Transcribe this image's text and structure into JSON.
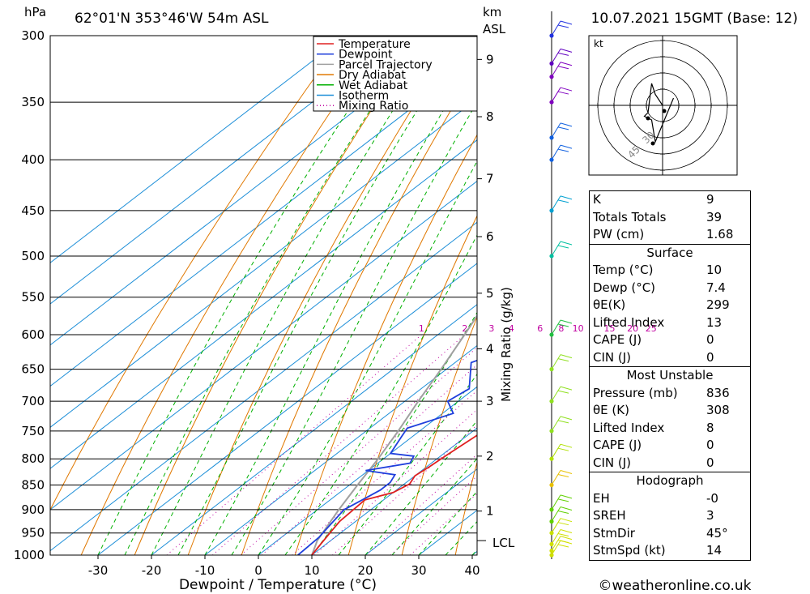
{
  "header": {
    "location": "62°01'N 353°46'W 54m ASL",
    "datetime": "10.07.2021 15GMT (Base: 12)",
    "pressure_unit": "hPa",
    "height_unit_top": "km",
    "height_unit_bottom": "ASL",
    "x_axis_label": "Dewpoint / Temperature (°C)",
    "mixing_axis_label": "Mixing Ratio (g/kg)",
    "credit": "©weatheronline.co.uk",
    "hodo_unit": "kt",
    "lcl_label": "LCL"
  },
  "legend": [
    {
      "label": "Temperature",
      "color": "#e02020",
      "style": "solid"
    },
    {
      "label": "Dewpoint",
      "color": "#1f3fdc",
      "style": "solid"
    },
    {
      "label": "Parcel Trajectory",
      "color": "#a0a0a0",
      "style": "solid"
    },
    {
      "label": "Dry Adiabat",
      "color": "#e07800",
      "style": "solid"
    },
    {
      "label": "Wet Adiabat",
      "color": "#00b000",
      "style": "solid"
    },
    {
      "label": "Isotherm",
      "color": "#1e8fd8",
      "style": "solid"
    },
    {
      "label": "Mixing Ratio",
      "color": "#c000a0",
      "style": "dotted"
    }
  ],
  "chart_data": {
    "type": "skew-t",
    "y_axis": {
      "name": "pressure",
      "unit": "hPa",
      "scale": "log",
      "range": [
        1000,
        300
      ],
      "ticks": [
        300,
        350,
        400,
        450,
        500,
        550,
        600,
        650,
        700,
        750,
        800,
        850,
        900,
        950,
        1000
      ]
    },
    "x_axis": {
      "name": "temperature",
      "unit": "°C",
      "range": [
        -40,
        40
      ],
      "ticks": [
        -30,
        -20,
        -10,
        0,
        10,
        20,
        30,
        40
      ]
    },
    "height_ticks_km": [
      {
        "km": "1",
        "p": 903
      },
      {
        "km": "2",
        "p": 795
      },
      {
        "km": "3",
        "p": 700
      },
      {
        "km": "4",
        "p": 620
      },
      {
        "km": "5",
        "p": 545
      },
      {
        "km": "6",
        "p": 478
      },
      {
        "km": "7",
        "p": 418
      },
      {
        "km": "8",
        "p": 362
      },
      {
        "km": "9",
        "p": 317
      }
    ],
    "lcl_pressure": 967,
    "mixing_ratio_labels": [
      "1",
      "2",
      "3",
      "4",
      "6",
      "8",
      "10",
      "15",
      "20",
      "25"
    ],
    "series": [
      {
        "name": "Temperature",
        "color": "#e02020",
        "points": [
          [
            1000,
            10
          ],
          [
            975,
            9
          ],
          [
            950,
            8
          ],
          [
            925,
            7
          ],
          [
            880,
            6.5
          ],
          [
            865,
            10
          ],
          [
            848,
            11
          ],
          [
            832,
            10
          ],
          [
            815,
            10.5
          ],
          [
            790,
            11
          ],
          [
            750,
            12
          ],
          [
            700,
            12
          ],
          [
            650,
            8.5
          ],
          [
            600,
            4.5
          ],
          [
            560,
            0
          ],
          [
            540,
            -1
          ],
          [
            520,
            -3
          ],
          [
            500,
            -5.5
          ],
          [
            470,
            -9
          ],
          [
            450,
            -12
          ],
          [
            420,
            -15
          ],
          [
            400,
            -18.5
          ],
          [
            380,
            -22
          ],
          [
            350,
            -26
          ],
          [
            330,
            -29
          ],
          [
            310,
            -33
          ],
          [
            300,
            -35
          ]
        ]
      },
      {
        "name": "Dewpoint",
        "color": "#1f3fdc",
        "points": [
          [
            1000,
            7.4
          ],
          [
            960,
            7
          ],
          [
            930,
            6
          ],
          [
            900,
            5
          ],
          [
            880,
            6
          ],
          [
            860,
            7
          ],
          [
            845,
            7
          ],
          [
            830,
            6
          ],
          [
            822,
            -0.5
          ],
          [
            808,
            6
          ],
          [
            795,
            5
          ],
          [
            790,
            0
          ],
          [
            760,
            -2
          ],
          [
            745,
            -3
          ],
          [
            720,
            2
          ],
          [
            700,
            -2
          ],
          [
            680,
            -1
          ],
          [
            640,
            -7
          ],
          [
            620,
            -3
          ],
          [
            605,
            1
          ],
          [
            590,
            4
          ],
          [
            575,
            2.5
          ],
          [
            550,
            -18
          ],
          [
            540,
            0
          ],
          [
            530,
            -7
          ],
          [
            520,
            -3
          ],
          [
            515,
            -8
          ],
          [
            500,
            -2
          ],
          [
            470,
            -1
          ],
          [
            455,
            -3
          ],
          [
            440,
            -1
          ],
          [
            420,
            -6
          ],
          [
            410,
            1
          ],
          [
            395,
            -6
          ],
          [
            378,
            -6
          ],
          [
            365,
            -6
          ],
          [
            358,
            -4
          ],
          [
            345,
            -8
          ],
          [
            330,
            -4
          ],
          [
            320,
            -7
          ],
          [
            305,
            -7
          ],
          [
            300,
            -7
          ]
        ]
      },
      {
        "name": "Parcel Trajectory",
        "color": "#a0a0a0",
        "points": [
          [
            1000,
            10
          ],
          [
            967,
            7.5
          ],
          [
            900,
            4
          ],
          [
            850,
            1.5
          ],
          [
            800,
            -1
          ],
          [
            750,
            -4
          ],
          [
            700,
            -7.5
          ],
          [
            650,
            -11
          ],
          [
            600,
            -15
          ],
          [
            550,
            -19.5
          ],
          [
            500,
            -24.5
          ],
          [
            450,
            -30
          ],
          [
            400,
            -36
          ],
          [
            350,
            -43
          ],
          [
            300,
            -51
          ]
        ]
      }
    ],
    "wind_levels": [
      {
        "p": 1000,
        "color": "#d0e000"
      },
      {
        "p": 990,
        "color": "#d0e000"
      },
      {
        "p": 975,
        "color": "#d0e000"
      },
      {
        "p": 950,
        "color": "#c8e000"
      },
      {
        "p": 925,
        "color": "#60d000"
      },
      {
        "p": 900,
        "color": "#60d000"
      },
      {
        "p": 850,
        "color": "#e8c000"
      },
      {
        "p": 800,
        "color": "#b0e000"
      },
      {
        "p": 750,
        "color": "#90e020"
      },
      {
        "p": 700,
        "color": "#90e020"
      },
      {
        "p": 650,
        "color": "#90e020"
      },
      {
        "p": 600,
        "color": "#20c040"
      },
      {
        "p": 500,
        "color": "#00c0a0"
      },
      {
        "p": 450,
        "color": "#00a0d0"
      },
      {
        "p": 400,
        "color": "#1060e0"
      },
      {
        "p": 380,
        "color": "#1060e0"
      },
      {
        "p": 350,
        "color": "#8000c0"
      },
      {
        "p": 330,
        "color": "#8000c0"
      },
      {
        "p": 320,
        "color": "#6000c0"
      },
      {
        "p": 300,
        "color": "#2030e0"
      }
    ]
  },
  "indices": {
    "general": [
      {
        "k": "K",
        "v": "9"
      },
      {
        "k": "Totals Totals",
        "v": "39"
      },
      {
        "k": "PW (cm)",
        "v": "1.68"
      }
    ],
    "surface_title": "Surface",
    "surface": [
      {
        "k": "Temp (°C)",
        "v": "10"
      },
      {
        "k": "Dewp (°C)",
        "v": "7.4"
      },
      {
        "k": "θE(K)",
        "v": "299"
      },
      {
        "k": "Lifted Index",
        "v": "13"
      },
      {
        "k": "CAPE (J)",
        "v": "0"
      },
      {
        "k": "CIN (J)",
        "v": "0"
      }
    ],
    "unstable_title": "Most Unstable",
    "unstable": [
      {
        "k": "Pressure (mb)",
        "v": "836"
      },
      {
        "k": "θE (K)",
        "v": "308"
      },
      {
        "k": "Lifted Index",
        "v": "8"
      },
      {
        "k": "CAPE (J)",
        "v": "0"
      },
      {
        "k": "CIN (J)",
        "v": "0"
      }
    ],
    "hodo_title": "Hodograph",
    "hodo": [
      {
        "k": "EH",
        "v": "-0"
      },
      {
        "k": "SREH",
        "v": "3"
      },
      {
        "k": "StmDir",
        "v": "45°"
      },
      {
        "k": "StmSpd (kt)",
        "v": "14"
      }
    ]
  },
  "hodograph": {
    "ring_labels": [
      "30",
      "45"
    ],
    "points_kt": [
      [
        0,
        0
      ],
      [
        -2,
        3
      ],
      [
        -3,
        6
      ],
      [
        -4,
        -2
      ],
      [
        -5,
        -3
      ],
      [
        -3,
        -4
      ],
      [
        -2,
        -10
      ],
      [
        3,
        2
      ]
    ]
  }
}
